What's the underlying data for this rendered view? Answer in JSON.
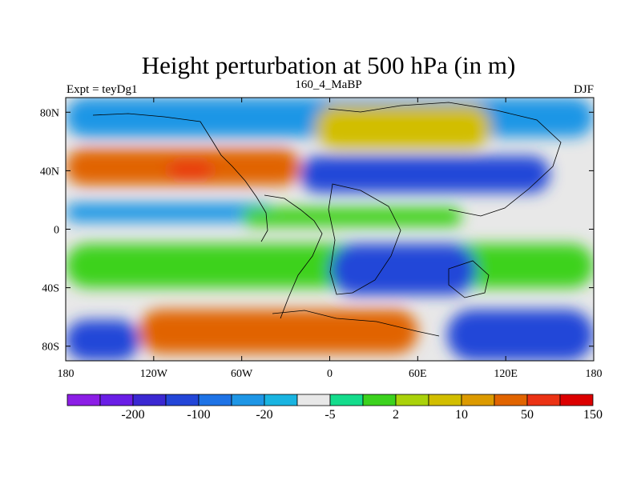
{
  "chart_data": {
    "type": "heatmap",
    "title": "Height perturbation at 500 hPa (in m)",
    "left_label": "Expt = teyDg1",
    "center_label": "160_4_MaBP",
    "right_label": "DJF",
    "xlim": [
      -180,
      180
    ],
    "ylim": [
      -90,
      90
    ],
    "x_ticks": [
      {
        "value": -180,
        "label": "180"
      },
      {
        "value": -120,
        "label": "120W"
      },
      {
        "value": -60,
        "label": "60W"
      },
      {
        "value": 0,
        "label": "0"
      },
      {
        "value": 60,
        "label": "60E"
      },
      {
        "value": 120,
        "label": "120E"
      },
      {
        "value": 180,
        "label": "180"
      }
    ],
    "y_ticks": [
      {
        "value": 80,
        "label": "80N"
      },
      {
        "value": 40,
        "label": "40N"
      },
      {
        "value": 0,
        "label": "0"
      },
      {
        "value": -40,
        "label": "40S"
      },
      {
        "value": -80,
        "label": "80S"
      }
    ],
    "colorbar": {
      "colors": [
        "#8c1ee6",
        "#6a1ee6",
        "#3b28d2",
        "#2346d8",
        "#1e73e6",
        "#1e96e6",
        "#19b4e1",
        "#e8e8e8",
        "#14dc8c",
        "#3cd21e",
        "#aad20a",
        "#d2be00",
        "#dc9a00",
        "#e16400",
        "#eb3214",
        "#dc0000"
      ],
      "labels": [
        {
          "index": 2,
          "text": "-200"
        },
        {
          "index": 4,
          "text": "-100"
        },
        {
          "index": 6,
          "text": "-20"
        },
        {
          "index": 8,
          "text": "-5"
        },
        {
          "index": 10,
          "text": "2"
        },
        {
          "index": 12,
          "text": "10"
        },
        {
          "index": 14,
          "text": "50"
        },
        {
          "index": 16,
          "text": "150"
        }
      ]
    },
    "field_regions": [
      {
        "name": "polar-north-blue",
        "level": 5,
        "lon": [
          -180,
          180
        ],
        "lat": [
          63,
          90
        ]
      },
      {
        "name": "north-midlat-orange",
        "level": 13,
        "lon": [
          -180,
          -20
        ],
        "lat": [
          30,
          55
        ]
      },
      {
        "name": "north-orange-core",
        "level": 14,
        "lon": [
          -110,
          -80
        ],
        "lat": [
          35,
          46
        ]
      },
      {
        "name": "north-midlat-blue",
        "level": 3,
        "lon": [
          -20,
          150
        ],
        "lat": [
          25,
          50
        ]
      },
      {
        "name": "north-high-yellow",
        "level": 11,
        "lon": [
          -10,
          110
        ],
        "lat": [
          55,
          85
        ]
      },
      {
        "name": "tropics-north-blue",
        "level": 5,
        "lon": [
          -180,
          -40
        ],
        "lat": [
          5,
          18
        ]
      },
      {
        "name": "tropics-green",
        "level": 9,
        "lon": [
          -60,
          90
        ],
        "lat": [
          2,
          15
        ]
      },
      {
        "name": "southern-green",
        "level": 9,
        "lon": [
          -180,
          180
        ],
        "lat": [
          -40,
          -10
        ]
      },
      {
        "name": "southern-blue",
        "level": 3,
        "lon": [
          0,
          100
        ],
        "lat": [
          -45,
          -10
        ]
      },
      {
        "name": "southern-orange",
        "level": 13,
        "lon": [
          -130,
          60
        ],
        "lat": [
          -85,
          -55
        ]
      },
      {
        "name": "southern-polar-blue",
        "level": 3,
        "lon": [
          -180,
          -130
        ],
        "lat": [
          -90,
          -62
        ]
      },
      {
        "name": "southern-polar-blue-east",
        "level": 3,
        "lon": [
          80,
          180
        ],
        "lat": [
          -90,
          -55
        ]
      }
    ]
  }
}
